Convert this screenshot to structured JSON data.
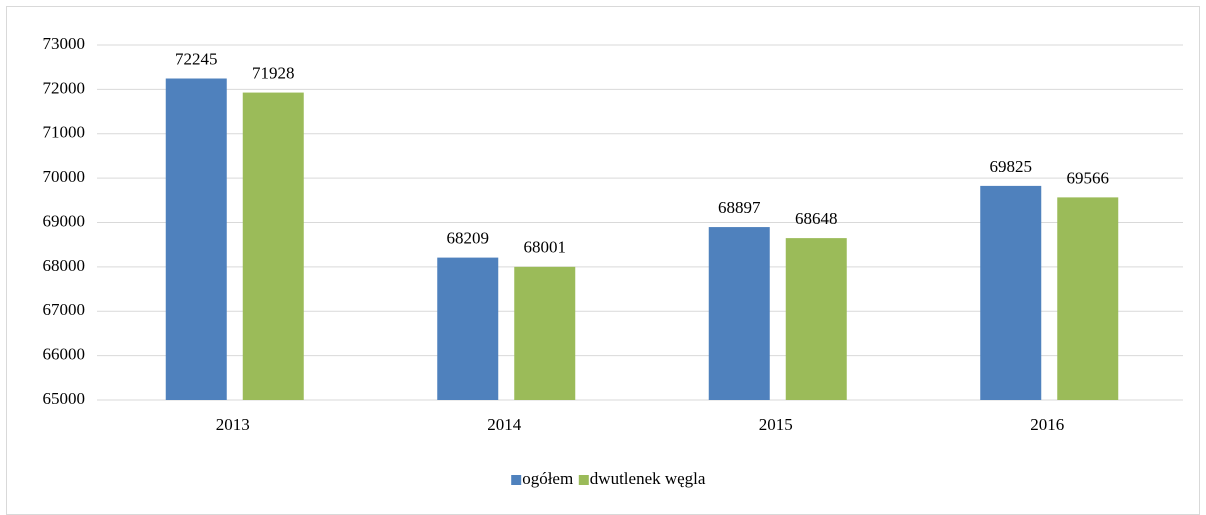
{
  "chart_data": {
    "type": "bar",
    "categories": [
      "2013",
      "2014",
      "2015",
      "2016"
    ],
    "series": [
      {
        "name": "ogółem",
        "color": "#4f81bd",
        "values": [
          72245,
          68209,
          68897,
          69825
        ]
      },
      {
        "name": "dwutlenek węgla",
        "color": "#9bbb59",
        "values": [
          71928,
          68001,
          68648,
          69566
        ]
      }
    ],
    "ylim": [
      65000,
      73000
    ],
    "yticks": [
      65000,
      66000,
      67000,
      68000,
      69000,
      70000,
      71000,
      72000,
      73000
    ],
    "grid": true,
    "legend": "bottom"
  }
}
